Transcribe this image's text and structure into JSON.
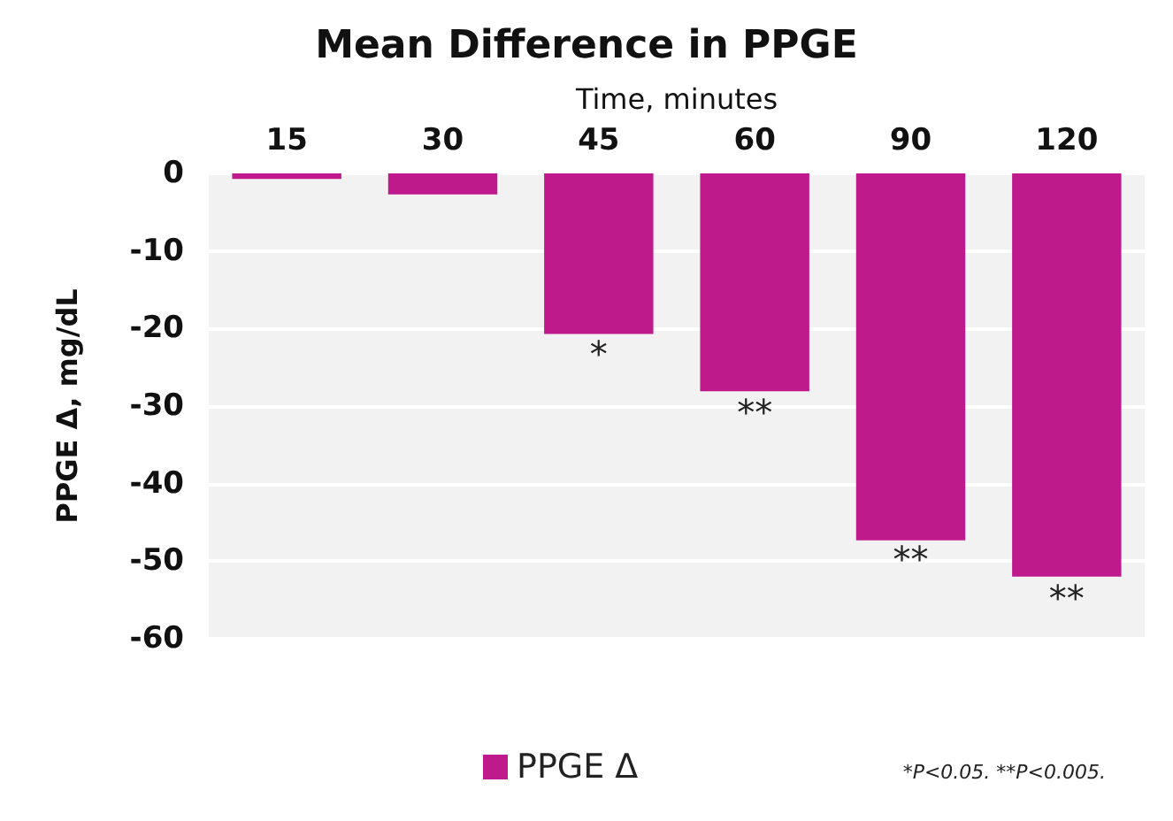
{
  "chart_data": {
    "type": "bar",
    "title": "Mean Difference in PPGE",
    "xlabel": "Time, minutes",
    "ylabel": "PPGE Δ, mg/dL",
    "categories": [
      "15",
      "30",
      "45",
      "60",
      "90",
      "120"
    ],
    "series": [
      {
        "name": "PPGE Δ",
        "color": "#bf1a8b",
        "values": [
          -0.7,
          -2.7,
          -20.7,
          -28.1,
          -47.3,
          -52
        ]
      }
    ],
    "ylim": [
      -60,
      0
    ],
    "yticks": [
      -60,
      -50,
      -40,
      -30,
      -20,
      -10,
      0
    ],
    "grid": "y",
    "legend": "bottom",
    "annotations": [
      {
        "text": "*",
        "x": "45",
        "y": -21
      },
      {
        "text": "**",
        "x": "60",
        "y": -28.5
      },
      {
        "text": "**",
        "x": "90",
        "y": -47.5
      },
      {
        "text": "**",
        "x": "120",
        "y": -52.5
      },
      "*P<0.05. **P<0.005."
    ]
  }
}
